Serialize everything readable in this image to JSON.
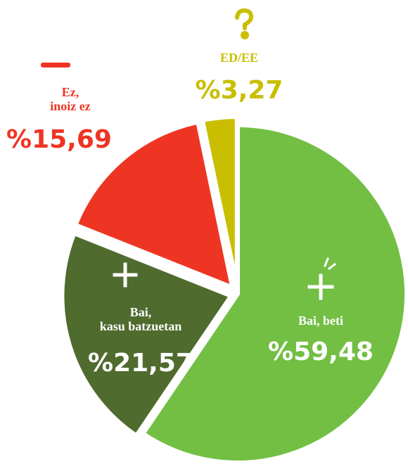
{
  "chart_data": {
    "type": "pie",
    "categories": [
      "Bai, beti",
      "Bai,\nkasu batzuetan",
      "Ez,\ninoiz ez",
      "ED/EE"
    ],
    "values": [
      59.48,
      21.57,
      15.69,
      3.27
    ],
    "value_labels": [
      "%59,48",
      "%21,57",
      "%15,69",
      "%3,27"
    ],
    "colors": [
      "#72bf44",
      "#4f6b2e",
      "#ee3524",
      "#c9be00"
    ],
    "label_colors": [
      "#ffffff",
      "#ffffff",
      "#ee3524",
      "#c9be00"
    ]
  }
}
